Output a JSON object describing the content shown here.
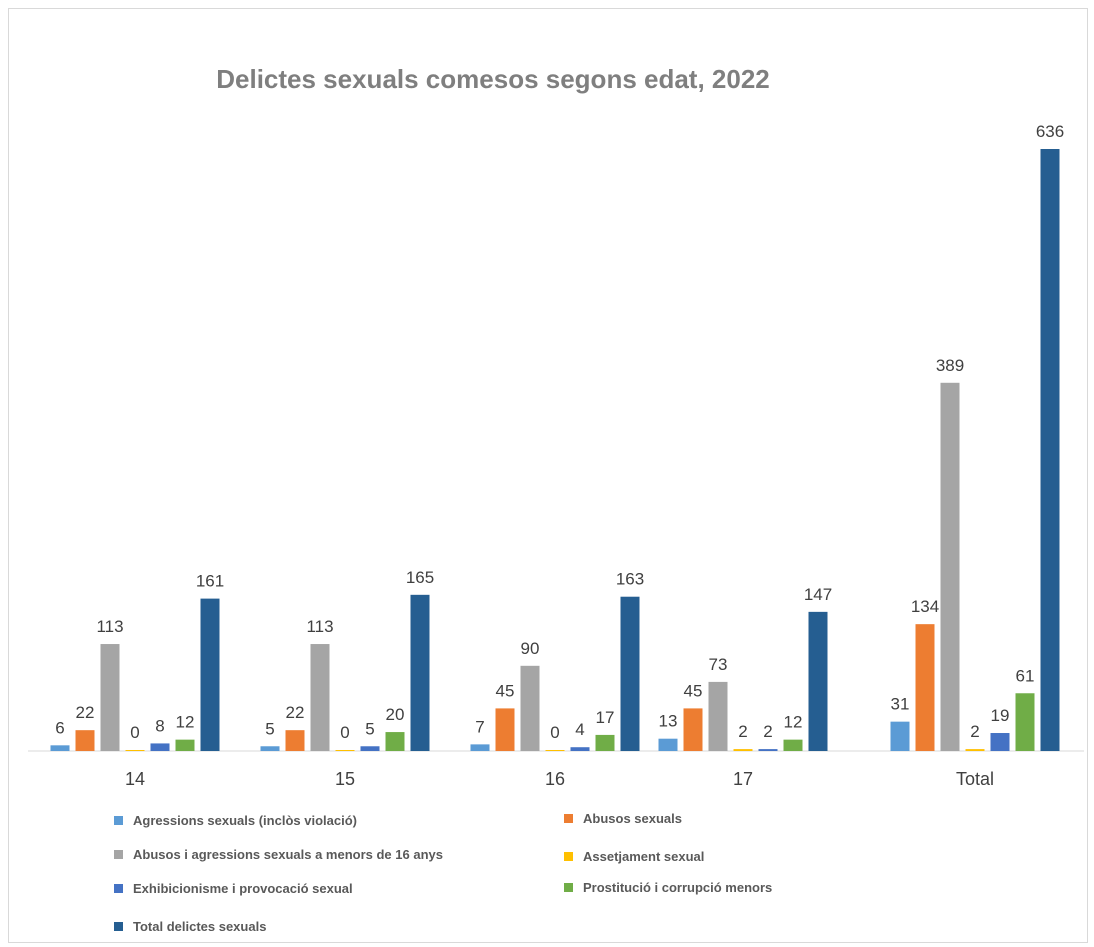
{
  "chart_data": {
    "type": "bar",
    "title": "Delictes sexuals comesos segons edat, 2022",
    "categories": [
      "14",
      "15",
      "16",
      "17",
      "Total"
    ],
    "series": [
      {
        "name": "Agressions sexuals (inclòs violació)",
        "color": "#5b9bd5",
        "values": [
          6,
          5,
          7,
          13,
          31
        ]
      },
      {
        "name": "Abusos sexuals",
        "color": "#ed7d31",
        "values": [
          22,
          22,
          45,
          45,
          134
        ]
      },
      {
        "name": "Abusos i agressions sexuals a menors de 16 anys",
        "color": "#a5a5a5",
        "values": [
          113,
          113,
          90,
          73,
          389
        ]
      },
      {
        "name": "Assetjament sexual",
        "color": "#ffc000",
        "values": [
          0,
          0,
          0,
          2,
          2
        ]
      },
      {
        "name": "Exhibicionisme i provocació sexual",
        "color": "#4472c4",
        "values": [
          8,
          5,
          4,
          2,
          19
        ]
      },
      {
        "name": "Prostitució i corrupció menors",
        "color": "#70ad47",
        "values": [
          12,
          20,
          17,
          12,
          61
        ]
      },
      {
        "name": "Total delictes sexuals",
        "color": "#255e91",
        "values": [
          161,
          165,
          163,
          147,
          636
        ]
      }
    ],
    "ylim": [
      0,
      636
    ],
    "grid": false,
    "data_labels": true,
    "legend_position": "bottom"
  }
}
